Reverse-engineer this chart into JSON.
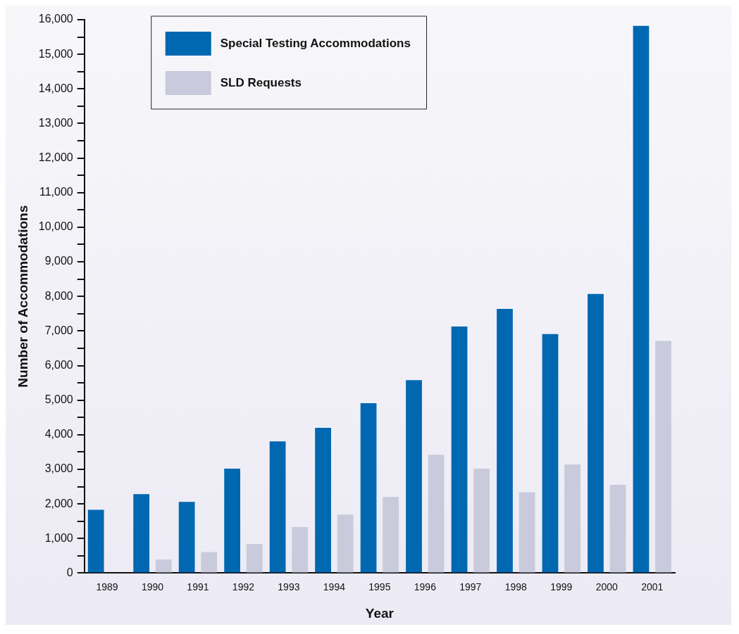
{
  "chart_data": {
    "type": "bar",
    "xlabel": "Year",
    "ylabel": "Number of Accommodations",
    "categories": [
      "1989",
      "1990",
      "1991",
      "1992",
      "1993",
      "1994",
      "1995",
      "1996",
      "1997",
      "1998",
      "1999",
      "2000",
      "2001"
    ],
    "series": [
      {
        "name": "Special Testing Accommodations",
        "color": "#0067b1",
        "values": [
          1830,
          2280,
          2060,
          3020,
          3810,
          4200,
          4910,
          5580,
          7130,
          7640,
          6910,
          8070,
          15820
        ]
      },
      {
        "name": "SLD Requests",
        "color": "#c9cbdc",
        "values": [
          null,
          390,
          610,
          840,
          1330,
          1690,
          2200,
          3420,
          3020,
          2340,
          3140,
          2550,
          6710
        ]
      }
    ],
    "ylim": [
      0,
      16000
    ],
    "yticks": [
      0,
      {
        "value": 500,
        "label": null
      },
      {
        "value": 1000,
        "label": "1,000"
      },
      {
        "value": 1500,
        "label": null
      },
      {
        "value": 2000,
        "label": "2,000"
      },
      {
        "value": 2500,
        "label": null
      },
      {
        "value": 3000,
        "label": "3,000"
      },
      {
        "value": 3500,
        "label": null
      },
      {
        "value": 4000,
        "label": "4,000"
      },
      {
        "value": 4500,
        "label": null
      },
      {
        "value": 5000,
        "label": "5,000"
      },
      {
        "value": 5500,
        "label": null
      },
      {
        "value": 6000,
        "label": "6,000"
      },
      {
        "value": 6500,
        "label": null
      },
      {
        "value": 7000,
        "label": "7,000"
      },
      {
        "value": 7500,
        "label": null
      },
      {
        "value": 8000,
        "label": "8,000"
      },
      {
        "value": 8500,
        "label": null
      },
      {
        "value": 9000,
        "label": "9,000"
      },
      {
        "value": 9500,
        "label": null
      },
      {
        "value": 10000,
        "label": "10,000"
      },
      {
        "value": 10500,
        "label": null
      },
      {
        "value": 11000,
        "label": "11,000"
      },
      {
        "value": 11500,
        "label": null
      },
      {
        "value": 12000,
        "label": "12,000"
      },
      {
        "value": 12500,
        "label": null
      },
      {
        "value": 13000,
        "label": "13,000"
      },
      {
        "value": 13500,
        "label": null
      },
      {
        "value": 14000,
        "label": "14,000"
      },
      {
        "value": 14500,
        "label": null
      },
      {
        "value": 15000,
        "label": "15,000"
      },
      {
        "value": 15500,
        "label": null
      },
      {
        "value": 16000,
        "label": "16,000"
      }
    ],
    "grid": false,
    "legend": "top left"
  }
}
